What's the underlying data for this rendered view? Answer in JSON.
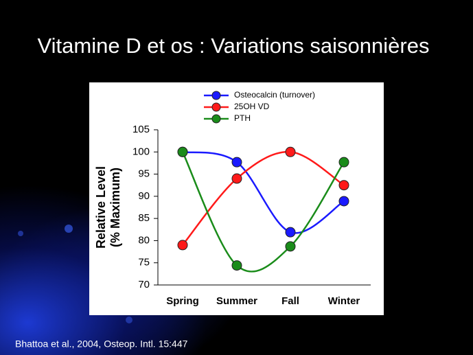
{
  "title": "Vitamine D et os : Variations saisonnières",
  "source": "Bhattoa et al., 2004, Osteop. Intl. 15:447",
  "chart_data": {
    "type": "line",
    "y_label": [
      "Relative Level",
      "(% Maximum)"
    ],
    "categories": [
      "Spring",
      "Summer",
      "Fall",
      "Winter"
    ],
    "series": [
      {
        "name": "Osteocalcin (turnover)",
        "color": "#1a1aff",
        "values": [
          100,
          97.7,
          81.9,
          88.9
        ]
      },
      {
        "name": "25OH VD",
        "color": "#ff1a1a",
        "values": [
          79,
          94,
          100,
          92.5
        ]
      },
      {
        "name": "PTH",
        "color": "#1a8c1a",
        "values": [
          100,
          74.4,
          78.7,
          97.7
        ]
      }
    ],
    "ylim": [
      70,
      105
    ],
    "yticks": [
      70,
      75,
      80,
      85,
      90,
      95,
      100,
      105
    ],
    "smooth": true
  }
}
